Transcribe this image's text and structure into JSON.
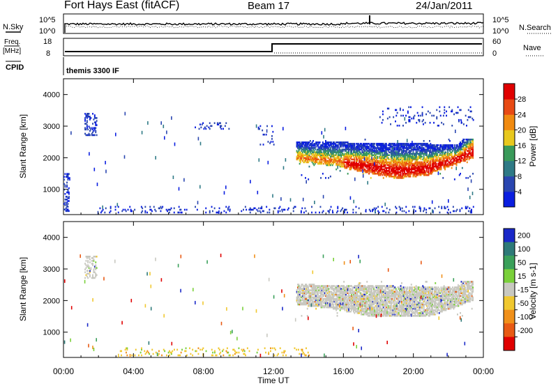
{
  "header": {
    "station": "Fort Hays East (fitACF)",
    "beam": "Beam 17",
    "date": "24/Jan/2011"
  },
  "noise_panel": {
    "left_label": "N.Sky",
    "right_label": "N.Search",
    "left_ticks": [
      "10^5",
      "10^0"
    ],
    "right_ticks": [
      "10^5",
      "10^0"
    ]
  },
  "freq_panel": {
    "left_label_top": "Freq.",
    "left_label_bottom": "[MHz]",
    "right_label": "Nave",
    "left_ticks": [
      "18",
      "8"
    ],
    "right_ticks": [
      "60",
      "0"
    ]
  },
  "cpid": {
    "label": "CPID",
    "text": "themis 3300 IF"
  },
  "range_axis": {
    "label": "Slant Range [km]",
    "ticks": [
      "1000",
      "2000",
      "3000",
      "4000"
    ]
  },
  "time_axis": {
    "label": "Time UT",
    "ticks": [
      "00:00",
      "04:00",
      "08:00",
      "12:00",
      "16:00",
      "20:00",
      "00:00"
    ]
  },
  "power_scale": {
    "title": "Power [dB]",
    "labels": [
      "4",
      "8",
      "12",
      "16",
      "20",
      "24",
      "28"
    ],
    "colors": [
      "#0a1ee0",
      "#2a46b0",
      "#2f7a86",
      "#3a9a5a",
      "#e8c81e",
      "#f08a10",
      "#e84a14",
      "#e00000"
    ]
  },
  "velocity_scale": {
    "title": "Velocity [m s-1]",
    "labels": [
      "200",
      "100",
      "50",
      "15",
      "-15",
      "-50",
      "-100",
      "-200"
    ],
    "colors": [
      "#1a28c8",
      "#2e7a78",
      "#3aa05a",
      "#7ad03a",
      "#c8c8c0",
      "#f0c830",
      "#f0901a",
      "#e85a14",
      "#e00000"
    ]
  },
  "chart_data": {
    "type": "heatmap",
    "x_unit": "Time UT (hours)",
    "xlim": [
      0,
      24
    ],
    "ylim": [
      200,
      4500
    ],
    "panels": [
      {
        "name": "power",
        "echo_regions": [
          {
            "t_start": 0.0,
            "t_end": 0.3,
            "r_start": 300,
            "r_end": 1500,
            "level": "low"
          },
          {
            "t_start": 1.2,
            "t_end": 1.9,
            "r_start": 2700,
            "r_end": 3400,
            "level": "low"
          },
          {
            "t_start": 7.5,
            "t_end": 9.5,
            "r_start": 2900,
            "r_end": 3100,
            "level": "low"
          },
          {
            "t_start": 11.0,
            "t_end": 12.0,
            "r_start": 2400,
            "r_end": 3000,
            "level": "low"
          },
          {
            "t_start": 13.3,
            "t_end": 23.4,
            "r_start": 1300,
            "r_end": 2600,
            "level": "high"
          },
          {
            "t_start": 18.0,
            "t_end": 23.4,
            "r_start": 3000,
            "r_end": 3600,
            "level": "low"
          },
          {
            "t_start": 2.0,
            "t_end": 23.4,
            "r_start": 250,
            "r_end": 450,
            "level": "low"
          }
        ]
      },
      {
        "name": "velocity",
        "echo_regions": [
          {
            "t_start": 1.2,
            "t_end": 1.9,
            "r_start": 2700,
            "r_end": 3400,
            "level": "near-zero"
          },
          {
            "t_start": 13.3,
            "t_end": 23.4,
            "r_start": 1500,
            "r_end": 2600,
            "level": "near-zero"
          },
          {
            "t_start": 3.0,
            "t_end": 14.0,
            "r_start": 250,
            "r_end": 500,
            "level": "negative"
          }
        ]
      }
    ]
  }
}
